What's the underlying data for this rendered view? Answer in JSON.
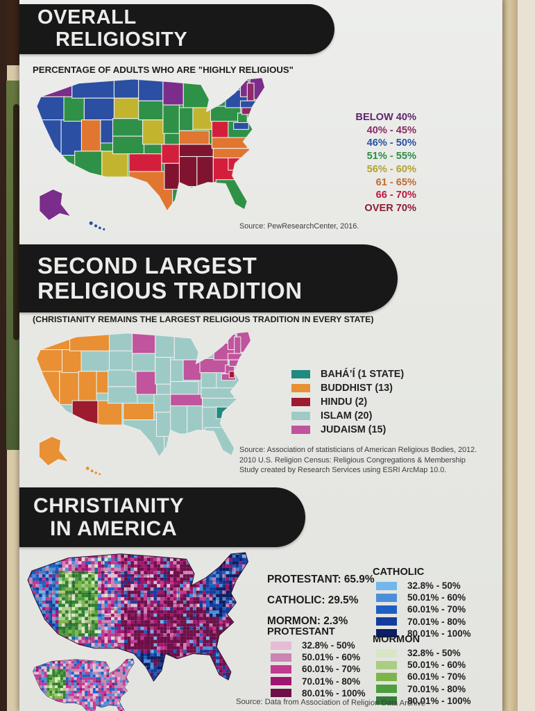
{
  "sections": {
    "overall": {
      "title1": "OVERALL",
      "title2": "RELIGIOSITY",
      "subtitle": "PERCENTAGE OF ADULTS WHO ARE \"HIGHLY RELIGIOUS\"",
      "source": "Source: PewResearchCenter, 2016.",
      "legend": [
        {
          "label": "BELOW 40%",
          "color": "#5f2570"
        },
        {
          "label": "40% - 45%",
          "color": "#8c2a62"
        },
        {
          "label": "46% - 50%",
          "color": "#2a4fa3"
        },
        {
          "label": "51% - 55%",
          "color": "#2e8b47"
        },
        {
          "label": "56% - 60%",
          "color": "#b3a22e"
        },
        {
          "label": "61 - 65%",
          "color": "#c06a30"
        },
        {
          "label": "66 - 70%",
          "color": "#c0143c"
        },
        {
          "label": "OVER 70%",
          "color": "#8c1b33"
        }
      ]
    },
    "second": {
      "title1": "SECOND LARGEST",
      "title2": "RELIGIOUS TRADITION",
      "subtitle": "(CHRISTIANITY REMAINS THE LARGEST RELIGIOUS TRADITION IN EVERY STATE)",
      "legend": [
        {
          "label": "BAHÁ’Í (1 STATE)",
          "color": "#1f8a80"
        },
        {
          "label": "BUDDHIST (13)",
          "color": "#e89033"
        },
        {
          "label": "HINDU (2)",
          "color": "#9c1b2e"
        },
        {
          "label": "ISLAM (20)",
          "color": "#9ecac6"
        },
        {
          "label": "JUDAISM (15)",
          "color": "#c0549d"
        }
      ],
      "source_lines": [
        "Source: Association of statisticians of American Religious Bodies, 2012.",
        "2010 U.S. Religion Census: Religious Congregations & Membership",
        "Study created by Research Services using ESRI ArcMap 10.0."
      ]
    },
    "christianity": {
      "title1": "CHRISTIANITY",
      "title2": "IN AMERICA",
      "stats": [
        "PROTESTANT: 65.9%",
        "CATHOLIC: 29.5%",
        "MORMON: 2.3%"
      ],
      "legends": [
        {
          "title": "CATHOLIC",
          "entries": [
            {
              "label": "32.8% - 50%",
              "color": "#72b6ec"
            },
            {
              "label": "50.01% - 60%",
              "color": "#4b8fd9"
            },
            {
              "label": "60.01% - 70%",
              "color": "#1c5fc2"
            },
            {
              "label": "70.01% - 80%",
              "color": "#123d9e"
            },
            {
              "label": "80.01% - 100%",
              "color": "#0b1e66"
            }
          ]
        },
        {
          "title": "PROTESTANT",
          "entries": [
            {
              "label": "32.8% - 50%",
              "color": "#e5bcd6"
            },
            {
              "label": "50.01% - 60%",
              "color": "#cc84b4"
            },
            {
              "label": "60.01% - 70%",
              "color": "#c2398f"
            },
            {
              "label": "70.01% - 80%",
              "color": "#a01570"
            },
            {
              "label": "80.01% - 100%",
              "color": "#6e0f48"
            }
          ]
        },
        {
          "title": "MORMON",
          "entries": [
            {
              "label": "32.8% - 50%",
              "color": "#d8e6c6"
            },
            {
              "label": "50.01% - 60%",
              "color": "#aacd82"
            },
            {
              "label": "60.01% - 70%",
              "color": "#7eb54a"
            },
            {
              "label": "70.01% - 80%",
              "color": "#4d9e3c"
            },
            {
              "label": "80.01% - 100%",
              "color": "#2f7d33"
            }
          ]
        }
      ],
      "source": "Source: Data from Association of Religion Data Archive"
    }
  },
  "maps": {
    "palette1": {
      "P": "#7b2d8b",
      "M": "#8f2a66",
      "B": "#2a4fa3",
      "G": "#2f9147",
      "Y": "#c2b42e",
      "O": "#e0762f",
      "R": "#d41f3c",
      "D": "#801430"
    },
    "base1": "G",
    "alaska1": "P",
    "hawaii1": "B",
    "cells1": [
      [
        16,
        2,
        44,
        30,
        "P"
      ],
      [
        4,
        30,
        46,
        36,
        "B"
      ],
      [
        2,
        64,
        42,
        74,
        "B"
      ],
      [
        44,
        64,
        30,
        52,
        "B"
      ],
      [
        48,
        30,
        30,
        36,
        "G"
      ],
      [
        60,
        2,
        62,
        30,
        "B"
      ],
      [
        78,
        32,
        44,
        32,
        "B"
      ],
      [
        74,
        64,
        28,
        46,
        "O"
      ],
      [
        64,
        110,
        40,
        44,
        "G"
      ],
      [
        104,
        110,
        38,
        44,
        "Y"
      ],
      [
        102,
        64,
        42,
        34,
        "B"
      ],
      [
        122,
        2,
        36,
        30,
        "B"
      ],
      [
        122,
        32,
        38,
        30,
        "Y"
      ],
      [
        120,
        62,
        44,
        26,
        "G"
      ],
      [
        120,
        88,
        46,
        26,
        "G"
      ],
      [
        144,
        114,
        48,
        26,
        "R"
      ],
      [
        144,
        140,
        64,
        60,
        "O"
      ],
      [
        158,
        2,
        36,
        34,
        "B"
      ],
      [
        158,
        36,
        36,
        28,
        "G"
      ],
      [
        164,
        64,
        32,
        36,
        "Y"
      ],
      [
        192,
        100,
        30,
        28,
        "R"
      ],
      [
        196,
        128,
        34,
        38,
        "D"
      ],
      [
        194,
        2,
        30,
        40,
        "P"
      ],
      [
        194,
        42,
        24,
        42,
        "G"
      ],
      [
        224,
        2,
        38,
        44,
        "G"
      ],
      [
        218,
        46,
        20,
        34,
        "G"
      ],
      [
        238,
        46,
        28,
        32,
        "Y"
      ],
      [
        218,
        80,
        44,
        20,
        "O"
      ],
      [
        218,
        100,
        50,
        18,
        "D"
      ],
      [
        218,
        118,
        26,
        44,
        "D"
      ],
      [
        244,
        118,
        24,
        44,
        "D"
      ],
      [
        268,
        114,
        32,
        42,
        "R"
      ],
      [
        272,
        152,
        52,
        44,
        "G"
      ],
      [
        266,
        66,
        24,
        24,
        "R"
      ],
      [
        266,
        90,
        52,
        16,
        "O"
      ],
      [
        268,
        106,
        56,
        14,
        "O"
      ],
      [
        290,
        120,
        28,
        18,
        "R"
      ],
      [
        264,
        44,
        44,
        22,
        "G"
      ],
      [
        286,
        20,
        40,
        26,
        "B"
      ],
      [
        304,
        54,
        14,
        18,
        "G"
      ],
      [
        298,
        68,
        22,
        10,
        "B"
      ],
      [
        322,
        0,
        24,
        34,
        "P"
      ],
      [
        308,
        6,
        12,
        24,
        "P"
      ],
      [
        318,
        10,
        10,
        26,
        "M"
      ],
      [
        308,
        36,
        28,
        10,
        "B"
      ],
      [
        310,
        46,
        20,
        10,
        "M"
      ]
    ],
    "palette2": {
      "T": "#1f8a80",
      "O": "#e89033",
      "H": "#9c1b2e",
      "I": "#9ecac6",
      "J": "#c0549d"
    },
    "base2": "I",
    "alaska2": "O",
    "hawaii2": "O",
    "cells2": [
      [
        16,
        2,
        44,
        30,
        "O"
      ],
      [
        4,
        30,
        46,
        36,
        "O"
      ],
      [
        2,
        64,
        42,
        74,
        "O"
      ],
      [
        44,
        64,
        30,
        52,
        "O"
      ],
      [
        48,
        30,
        30,
        36,
        "O"
      ],
      [
        60,
        2,
        62,
        30,
        "O"
      ],
      [
        78,
        32,
        44,
        32,
        "I"
      ],
      [
        74,
        64,
        28,
        46,
        "O"
      ],
      [
        64,
        110,
        40,
        46,
        "H"
      ],
      [
        104,
        110,
        38,
        44,
        "O"
      ],
      [
        102,
        64,
        42,
        34,
        "O"
      ],
      [
        122,
        2,
        36,
        30,
        "I"
      ],
      [
        122,
        32,
        38,
        30,
        "I"
      ],
      [
        120,
        62,
        44,
        26,
        "I"
      ],
      [
        120,
        88,
        46,
        26,
        "I"
      ],
      [
        144,
        114,
        48,
        26,
        "O"
      ],
      [
        144,
        140,
        64,
        60,
        "I"
      ],
      [
        158,
        2,
        36,
        34,
        "J"
      ],
      [
        158,
        36,
        36,
        28,
        "I"
      ],
      [
        164,
        64,
        32,
        36,
        "J"
      ],
      [
        192,
        100,
        30,
        28,
        "I"
      ],
      [
        196,
        128,
        34,
        38,
        "I"
      ],
      [
        194,
        2,
        30,
        40,
        "I"
      ],
      [
        194,
        42,
        24,
        42,
        "I"
      ],
      [
        224,
        2,
        38,
        44,
        "I"
      ],
      [
        218,
        46,
        20,
        34,
        "I"
      ],
      [
        238,
        46,
        28,
        32,
        "J"
      ],
      [
        218,
        80,
        44,
        20,
        "I"
      ],
      [
        218,
        100,
        50,
        18,
        "J"
      ],
      [
        218,
        118,
        26,
        44,
        "I"
      ],
      [
        244,
        118,
        24,
        44,
        "I"
      ],
      [
        268,
        114,
        32,
        42,
        "I"
      ],
      [
        272,
        152,
        52,
        44,
        "I"
      ],
      [
        266,
        66,
        24,
        24,
        "I"
      ],
      [
        266,
        90,
        52,
        16,
        "I"
      ],
      [
        268,
        106,
        56,
        14,
        "I"
      ],
      [
        290,
        120,
        28,
        18,
        "T"
      ],
      [
        264,
        44,
        44,
        22,
        "J"
      ],
      [
        286,
        20,
        40,
        26,
        "J"
      ],
      [
        304,
        54,
        14,
        18,
        "J"
      ],
      [
        298,
        68,
        22,
        10,
        "J"
      ],
      [
        310,
        64,
        8,
        10,
        "H"
      ],
      [
        322,
        0,
        24,
        34,
        "J"
      ],
      [
        308,
        6,
        12,
        24,
        "J"
      ],
      [
        318,
        10,
        10,
        26,
        "J"
      ],
      [
        308,
        36,
        28,
        10,
        "J"
      ],
      [
        310,
        46,
        20,
        10,
        "J"
      ]
    ]
  }
}
